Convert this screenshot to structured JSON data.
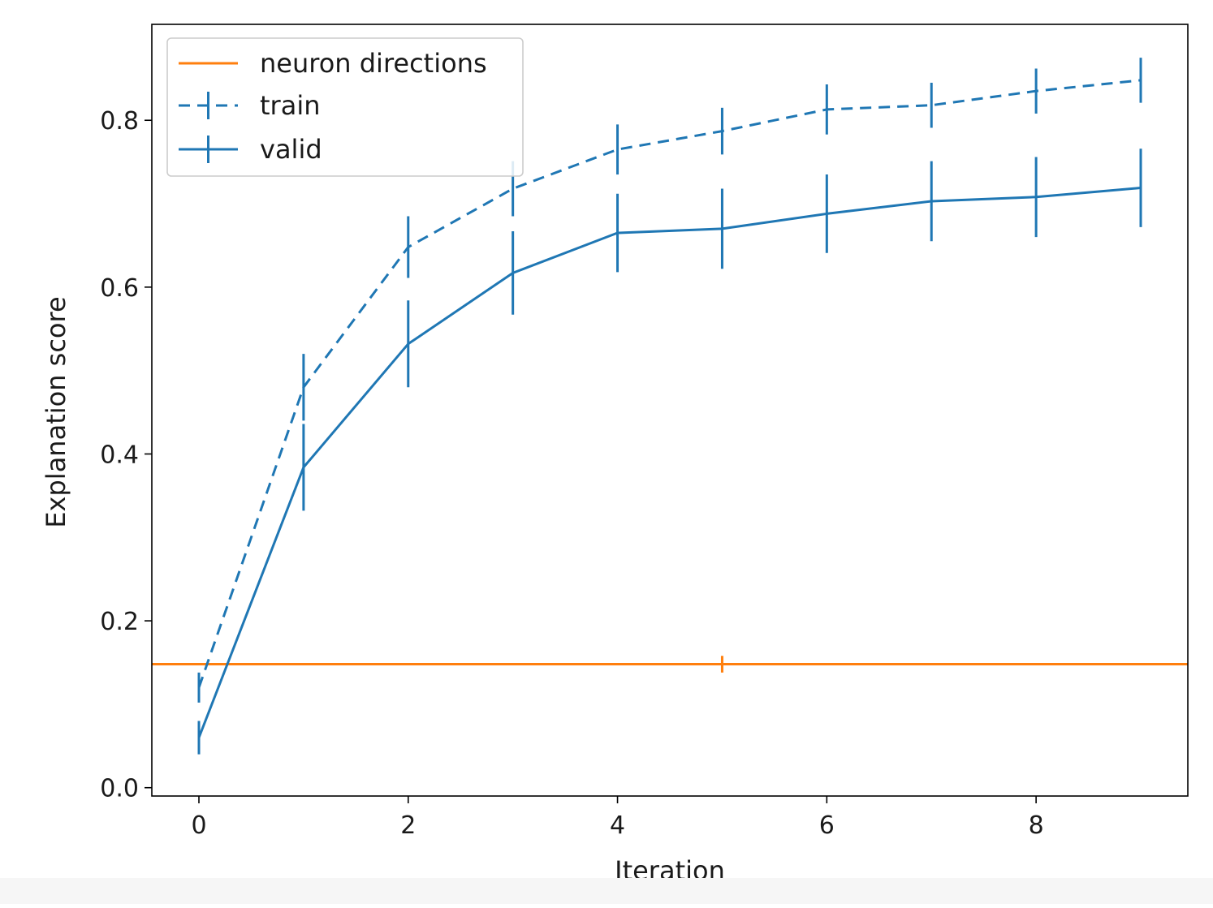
{
  "chart_data": {
    "type": "line",
    "xlabel": "Iteration",
    "ylabel": "Explanation score",
    "xlim": [
      -0.45,
      9.45
    ],
    "ylim": [
      -0.01,
      0.915
    ],
    "x_ticks": [
      "0",
      "2",
      "4",
      "6",
      "8"
    ],
    "y_ticks": [
      "0.0",
      "0.2",
      "0.4",
      "0.6",
      "0.8"
    ],
    "grid": false,
    "legend_position": "top-left",
    "series": [
      {
        "name": "neuron directions",
        "color": "#ff7f0e",
        "style": "solid",
        "kind": "hline",
        "y": 0.148,
        "error_x": 5,
        "error": 0.01
      },
      {
        "name": "train",
        "color": "#1f77b4",
        "style": "dashed",
        "x": [
          0,
          1,
          2,
          3,
          4,
          5,
          6,
          7,
          8,
          9
        ],
        "y": [
          0.12,
          0.48,
          0.648,
          0.718,
          0.765,
          0.787,
          0.813,
          0.818,
          0.835,
          0.848
        ],
        "error": [
          0.018,
          0.04,
          0.037,
          0.033,
          0.03,
          0.028,
          0.03,
          0.027,
          0.027,
          0.027
        ]
      },
      {
        "name": "valid",
        "color": "#1f77b4",
        "style": "solid",
        "x": [
          0,
          1,
          2,
          3,
          4,
          5,
          6,
          7,
          8,
          9
        ],
        "y": [
          0.06,
          0.384,
          0.532,
          0.617,
          0.665,
          0.67,
          0.688,
          0.703,
          0.708,
          0.719
        ],
        "error": [
          0.02,
          0.052,
          0.052,
          0.05,
          0.047,
          0.048,
          0.047,
          0.048,
          0.048,
          0.047
        ]
      }
    ]
  }
}
